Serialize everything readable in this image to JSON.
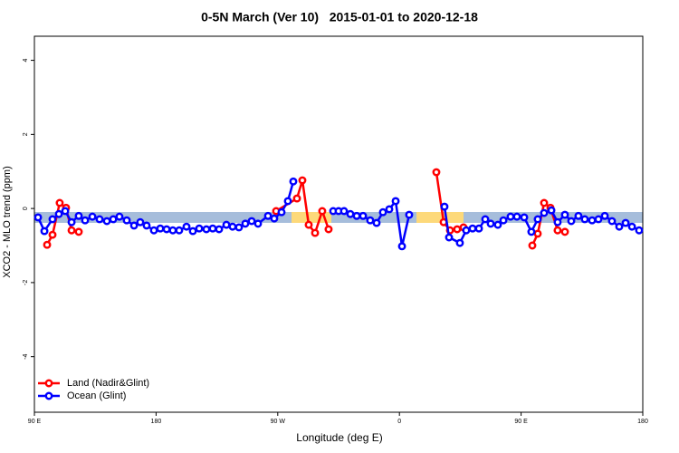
{
  "chart_data": {
    "type": "line",
    "title": "0-5N March (Ver 10)   2015-01-01 to 2020-12-18",
    "x_label": "Longitude (deg E)",
    "y_label": "XCO2 - MLO trend (ppm)",
    "xlim": [
      90,
      540
    ],
    "xticks": [
      {
        "value": 90,
        "label": "90 E"
      },
      180,
      {
        "value": 270,
        "label": "90 W"
      },
      {
        "value": 360,
        "label": "0"
      },
      {
        "value": 450,
        "label": "90 E"
      },
      {
        "value": 540,
        "label": "180"
      }
    ],
    "ylim": [
      -5.5,
      4.65
    ],
    "yticks": [
      -4,
      -2,
      0,
      2,
      4
    ],
    "legend": "bottom-left",
    "series": [
      {
        "name": "Land (Nadir&Glint)",
        "color": "#ff0000",
        "x": [
          99.4,
          103.4,
          108.7,
          113.4,
          117.5,
          122.8,
          null,
          268.8,
          284.2,
          288.2,
          292.9,
          297.6,
          302.9,
          307.6,
          null,
          387.3,
          392.7,
          397.4,
          402.7,
          407.4,
          null,
          458.3,
          462.3,
          467.0,
          471.7,
          477.0,
          482.4
        ],
        "values": [
          -0.98,
          -0.71,
          0.15,
          0.02,
          -0.59,
          -0.63,
          null,
          -0.07,
          0.27,
          0.76,
          -0.44,
          -0.66,
          -0.07,
          -0.56,
          null,
          0.98,
          -0.37,
          -0.59,
          -0.56,
          -0.51,
          null,
          -1.0,
          -0.68,
          0.15,
          0.02,
          -0.59,
          -0.63
        ]
      },
      {
        "name": "Ocean (Glint)",
        "color": "#0000ff",
        "x": [
          92.7,
          97.4,
          103.4,
          108.1,
          112.8,
          117.5,
          122.8,
          127.5,
          132.9,
          138.2,
          143.6,
          148.3,
          152.9,
          158.3,
          163.7,
          168.3,
          173.0,
          178.4,
          183.1,
          187.8,
          192.4,
          197.1,
          202.5,
          207.2,
          211.9,
          217.2,
          221.9,
          226.6,
          232.0,
          236.6,
          241.3,
          246.0,
          250.7,
          255.4,
          262.8,
          267.4,
          272.8,
          277.5,
          281.5,
          null,
          311.0,
          315.0,
          319.0,
          323.7,
          328.4,
          333.1,
          338.4,
          343.1,
          347.8,
          352.5,
          357.2,
          361.9,
          367.2,
          null,
          393.3,
          396.7,
          404.7,
          409.4,
          414.1,
          418.8,
          423.5,
          427.5,
          432.8,
          436.9,
          442.2,
          446.9,
          452.3,
          457.6,
          462.3,
          467.0,
          472.4,
          477.0,
          482.4,
          487.1,
          492.4,
          497.1,
          502.5,
          507.2,
          511.9,
          517.2,
          522.6,
          527.3,
          532.0,
          537.3
        ],
        "values": [
          -0.24,
          -0.61,
          -0.29,
          -0.15,
          -0.07,
          -0.37,
          -0.2,
          -0.32,
          -0.22,
          -0.29,
          -0.34,
          -0.29,
          -0.22,
          -0.32,
          -0.46,
          -0.37,
          -0.46,
          -0.59,
          -0.54,
          -0.56,
          -0.59,
          -0.59,
          -0.49,
          -0.61,
          -0.54,
          -0.56,
          -0.54,
          -0.56,
          -0.44,
          -0.49,
          -0.51,
          -0.41,
          -0.34,
          -0.41,
          -0.2,
          -0.27,
          -0.1,
          0.2,
          0.73,
          null,
          -0.07,
          -0.07,
          -0.07,
          -0.15,
          -0.2,
          -0.2,
          -0.32,
          -0.39,
          -0.1,
          -0.02,
          0.2,
          -1.02,
          -0.17,
          null,
          0.05,
          -0.78,
          -0.93,
          -0.59,
          -0.54,
          -0.54,
          -0.29,
          -0.41,
          -0.44,
          -0.32,
          -0.22,
          -0.22,
          -0.24,
          -0.63,
          -0.29,
          -0.12,
          -0.05,
          -0.37,
          -0.17,
          -0.34,
          -0.2,
          -0.29,
          -0.32,
          -0.29,
          -0.2,
          -0.34,
          -0.49,
          -0.39,
          -0.49,
          -0.59
        ]
      }
    ]
  }
}
